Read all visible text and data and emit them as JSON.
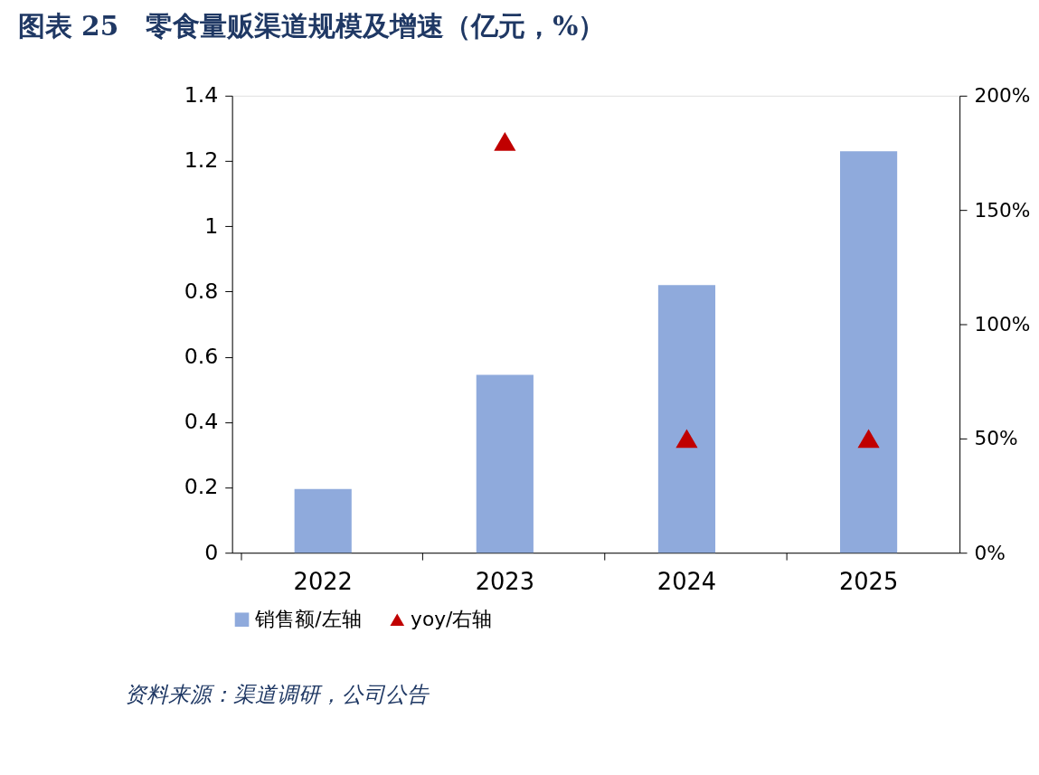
{
  "chart_data": {
    "type": "bar",
    "title": "图表 25　零食量贩渠道规模及增速（亿元，%）",
    "categories": [
      "2022",
      "2023",
      "2024",
      "2025"
    ],
    "series": [
      {
        "name": "销售额/左轴",
        "color": "#8faadc",
        "values": [
          0.195,
          0.545,
          0.82,
          1.23
        ]
      },
      {
        "name": "yoy/右轴",
        "type": "scatter",
        "axis": "y2",
        "marker": "triangle",
        "color": "#c00000",
        "values": [
          null,
          180,
          50,
          50
        ]
      }
    ],
    "ylim": [
      0,
      1.4
    ],
    "yticks": [
      0,
      0.2,
      0.4,
      0.6,
      0.8,
      1,
      1.2,
      1.4
    ],
    "y2lim": [
      0,
      200
    ],
    "y2ticks": [
      {
        "value": 0,
        "label": "0%"
      },
      {
        "value": 50,
        "label": "50%"
      },
      {
        "value": 100,
        "label": "100%"
      },
      {
        "value": 150,
        "label": "150%"
      },
      {
        "value": 200,
        "label": "200%"
      }
    ],
    "grid": false,
    "legend": "bottom",
    "annotations": [
      "资料来源：渠道调研，公司公告"
    ]
  }
}
